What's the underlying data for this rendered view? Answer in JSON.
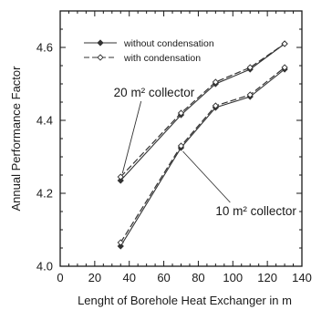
{
  "chart_data": {
    "type": "line",
    "title": "",
    "xlabel": "Lenght of Borehole Heat Exchanger in m",
    "ylabel": "Annual Performance Factor",
    "xlim": [
      0,
      140
    ],
    "ylim": [
      4.0,
      4.7
    ],
    "x_ticks": [
      0,
      20,
      40,
      60,
      80,
      100,
      120,
      140
    ],
    "y_ticks": [
      4.0,
      4.2,
      4.4,
      4.6
    ],
    "grid": false,
    "legend_position": "top",
    "legend": [
      "without condensation",
      "with condensation"
    ],
    "series": [
      {
        "name": "without condensation",
        "group": "20 m² collector",
        "style": "solid",
        "marker": "filled-diamond",
        "x": [
          35,
          70,
          90,
          110,
          130
        ],
        "values": [
          4.235,
          4.415,
          4.5,
          4.54,
          4.61
        ]
      },
      {
        "name": "with condensation",
        "group": "20 m² collector",
        "style": "dashed",
        "marker": "open-diamond",
        "x": [
          35,
          70,
          90,
          110,
          130
        ],
        "values": [
          4.245,
          4.42,
          4.505,
          4.545,
          4.61
        ]
      },
      {
        "name": "without condensation",
        "group": "10 m² collector",
        "style": "solid",
        "marker": "filled-diamond",
        "x": [
          35,
          70,
          90,
          110,
          130
        ],
        "values": [
          4.055,
          4.325,
          4.435,
          4.465,
          4.54
        ]
      },
      {
        "name": "with condensation",
        "group": "10 m² collector",
        "style": "dashed",
        "marker": "open-diamond",
        "x": [
          35,
          70,
          90,
          110,
          130
        ],
        "values": [
          4.065,
          4.33,
          4.44,
          4.47,
          4.545
        ]
      }
    ],
    "annotations": [
      {
        "text": "20 m² collector",
        "x": 31,
        "y": 4.465,
        "point_x": 35,
        "point_y": 4.245
      },
      {
        "text": "10 m² collector",
        "x": 90,
        "y": 4.14,
        "point_x": 70,
        "point_y": 4.325
      }
    ]
  }
}
